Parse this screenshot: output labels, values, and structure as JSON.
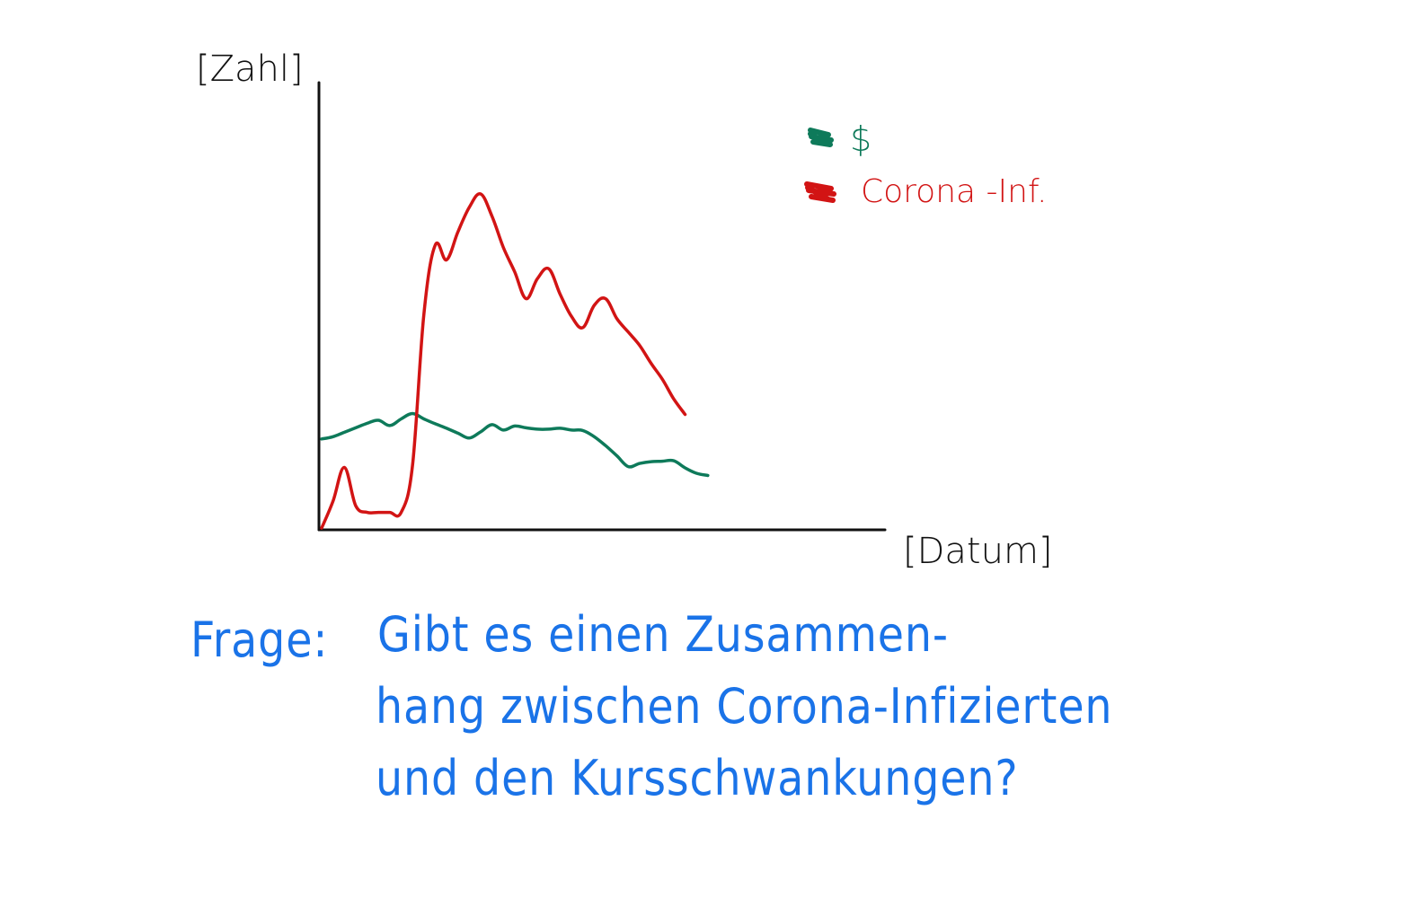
{
  "colors": {
    "axis": "#111111",
    "dollar": "#0e7a5a",
    "corona": "#d21414",
    "question": "#1a73e8"
  },
  "chart_data": {
    "type": "line",
    "title": "",
    "ylabel": "[Zahl]",
    "xlabel": "[Datum]",
    "x": [
      0,
      0.5,
      1,
      1.5,
      2,
      2.5,
      3,
      3.5,
      4,
      4.5,
      5,
      5.5,
      6,
      6.5,
      7,
      7.5,
      8,
      8.5,
      9,
      9.5,
      10,
      10.5,
      11,
      11.5,
      12,
      12.5,
      13,
      13.5,
      14,
      14.5,
      15,
      15.5,
      16,
      16.5,
      17,
      17.5,
      18,
      18.5,
      19,
      19.5,
      20,
      20.5,
      21,
      21.5,
      22,
      22.5,
      23,
      23.5,
      24,
      24.5,
      25
    ],
    "xlim": [
      0,
      25
    ],
    "ylim": [
      0,
      100
    ],
    "grid": false,
    "legend_position": "top-right",
    "series": [
      {
        "name": "$",
        "color": "#0e7a5a",
        "values": [
          20,
          20.5,
          21.5,
          22.5,
          23.5,
          24.2,
          23,
          24.5,
          25.7,
          24.5,
          23.4,
          22.4,
          21.3,
          20.2,
          21.6,
          23.2,
          22,
          22.9,
          22.5,
          22.2,
          22.2,
          22.4,
          22,
          21.9,
          20.5,
          18.5,
          16.2,
          13.8,
          14.5,
          14.9,
          15,
          15.1,
          13.5,
          12.3,
          11.8,
          null,
          null,
          null,
          null,
          null,
          null,
          null,
          null,
          null,
          null,
          null,
          null,
          null,
          null,
          null,
          null
        ]
      },
      {
        "name": "Corona-Inf.",
        "color": "#d21414",
        "values": [
          0,
          6,
          13.6,
          5,
          3.5,
          3.5,
          3.5,
          3.5,
          14,
          48,
          63.5,
          60.2,
          66.5,
          72,
          75,
          70,
          63,
          57.5,
          51.5,
          56,
          58.2,
          52.5,
          47.5,
          45,
          50,
          51.5,
          47,
          44,
          41,
          37,
          33.4,
          29,
          25.5,
          null,
          null,
          null,
          null,
          null,
          null,
          null,
          null,
          null,
          null,
          null,
          null,
          null,
          null,
          null,
          null,
          null,
          null
        ]
      }
    ]
  },
  "legend": [
    {
      "name": "$"
    },
    {
      "name": "Corona -Inf."
    }
  ],
  "question": {
    "prefix": "Frage:",
    "line1": "Gibt es einen Zusammen-",
    "line2": "hang zwischen Corona-Infizierten",
    "line3": "und den Kursschwankungen?"
  }
}
